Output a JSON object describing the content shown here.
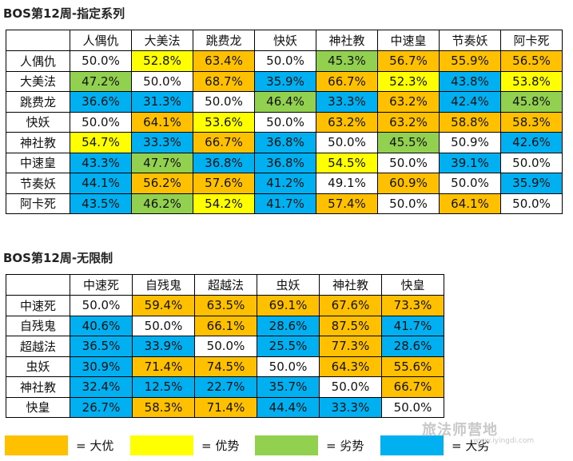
{
  "tables": [
    {
      "title": "BOS第12周-指定系列",
      "columns": [
        "人偶仇",
        "大美法",
        "跳费龙",
        "快妖",
        "神社教",
        "中速皇",
        "节奏妖",
        "阿卡死"
      ],
      "rows": [
        {
          "label": "人偶仇",
          "cells": [
            {
              "value": "50.0%",
              "level": "even"
            },
            {
              "value": "52.8%",
              "level": "adv"
            },
            {
              "value": "63.4%",
              "level": "big-adv"
            },
            {
              "value": "50.0%",
              "level": "even"
            },
            {
              "value": "45.3%",
              "level": "dis"
            },
            {
              "value": "56.7%",
              "level": "big-adv"
            },
            {
              "value": "55.9%",
              "level": "big-adv"
            },
            {
              "value": "56.5%",
              "level": "big-adv"
            }
          ]
        },
        {
          "label": "大美法",
          "cells": [
            {
              "value": "47.2%",
              "level": "dis"
            },
            {
              "value": "50.0%",
              "level": "even"
            },
            {
              "value": "68.7%",
              "level": "big-adv"
            },
            {
              "value": "35.9%",
              "level": "big-dis"
            },
            {
              "value": "66.7%",
              "level": "big-adv"
            },
            {
              "value": "52.3%",
              "level": "adv"
            },
            {
              "value": "43.8%",
              "level": "big-dis"
            },
            {
              "value": "53.8%",
              "level": "adv"
            }
          ]
        },
        {
          "label": "跳费龙",
          "cells": [
            {
              "value": "36.6%",
              "level": "big-dis"
            },
            {
              "value": "31.3%",
              "level": "big-dis"
            },
            {
              "value": "50.0%",
              "level": "even"
            },
            {
              "value": "46.4%",
              "level": "dis"
            },
            {
              "value": "33.3%",
              "level": "big-dis"
            },
            {
              "value": "63.2%",
              "level": "big-adv"
            },
            {
              "value": "42.4%",
              "level": "big-dis"
            },
            {
              "value": "45.8%",
              "level": "dis"
            }
          ]
        },
        {
          "label": "快妖",
          "cells": [
            {
              "value": "50.0%",
              "level": "even"
            },
            {
              "value": "64.1%",
              "level": "big-adv"
            },
            {
              "value": "53.6%",
              "level": "adv"
            },
            {
              "value": "50.0%",
              "level": "even"
            },
            {
              "value": "63.2%",
              "level": "big-adv"
            },
            {
              "value": "63.2%",
              "level": "big-adv"
            },
            {
              "value": "58.8%",
              "level": "big-adv"
            },
            {
              "value": "58.3%",
              "level": "big-adv"
            }
          ]
        },
        {
          "label": "神社教",
          "cells": [
            {
              "value": "54.7%",
              "level": "adv"
            },
            {
              "value": "33.3%",
              "level": "big-dis"
            },
            {
              "value": "66.7%",
              "level": "big-adv"
            },
            {
              "value": "36.8%",
              "level": "big-dis"
            },
            {
              "value": "50.0%",
              "level": "even"
            },
            {
              "value": "45.5%",
              "level": "dis"
            },
            {
              "value": "50.9%",
              "level": "even"
            },
            {
              "value": "42.6%",
              "level": "big-dis"
            }
          ]
        },
        {
          "label": "中速皇",
          "cells": [
            {
              "value": "43.3%",
              "level": "big-dis"
            },
            {
              "value": "47.7%",
              "level": "dis"
            },
            {
              "value": "36.8%",
              "level": "big-dis"
            },
            {
              "value": "36.8%",
              "level": "big-dis"
            },
            {
              "value": "54.5%",
              "level": "adv"
            },
            {
              "value": "50.0%",
              "level": "even"
            },
            {
              "value": "39.1%",
              "level": "big-dis"
            },
            {
              "value": "50.0%",
              "level": "even"
            }
          ]
        },
        {
          "label": "节奏妖",
          "cells": [
            {
              "value": "44.1%",
              "level": "big-dis"
            },
            {
              "value": "56.2%",
              "level": "big-adv"
            },
            {
              "value": "57.6%",
              "level": "big-adv"
            },
            {
              "value": "41.2%",
              "level": "big-dis"
            },
            {
              "value": "49.1%",
              "level": "even"
            },
            {
              "value": "60.9%",
              "level": "big-adv"
            },
            {
              "value": "50.0%",
              "level": "even"
            },
            {
              "value": "35.9%",
              "level": "big-dis"
            }
          ]
        },
        {
          "label": "阿卡死",
          "cells": [
            {
              "value": "43.5%",
              "level": "big-dis"
            },
            {
              "value": "46.2%",
              "level": "dis"
            },
            {
              "value": "54.2%",
              "level": "adv"
            },
            {
              "value": "41.7%",
              "level": "big-dis"
            },
            {
              "value": "57.4%",
              "level": "big-adv"
            },
            {
              "value": "50.0%",
              "level": "even"
            },
            {
              "value": "64.1%",
              "level": "big-adv"
            },
            {
              "value": "50.0%",
              "level": "even"
            }
          ]
        }
      ]
    },
    {
      "title": "BOS第12周-无限制",
      "columns": [
        "中速死",
        "自残鬼",
        "超越法",
        "虫妖",
        "神社教",
        "快皇"
      ],
      "rows": [
        {
          "label": "中速死",
          "cells": [
            {
              "value": "50.0%",
              "level": "even"
            },
            {
              "value": "59.4%",
              "level": "big-adv"
            },
            {
              "value": "63.5%",
              "level": "big-adv"
            },
            {
              "value": "69.1%",
              "level": "big-adv"
            },
            {
              "value": "67.6%",
              "level": "big-adv"
            },
            {
              "value": "73.3%",
              "level": "big-adv"
            }
          ]
        },
        {
          "label": "自残鬼",
          "cells": [
            {
              "value": "40.6%",
              "level": "big-dis"
            },
            {
              "value": "50.0%",
              "level": "even"
            },
            {
              "value": "66.1%",
              "level": "big-adv"
            },
            {
              "value": "28.6%",
              "level": "big-dis"
            },
            {
              "value": "87.5%",
              "level": "big-adv"
            },
            {
              "value": "41.7%",
              "level": "big-dis"
            }
          ]
        },
        {
          "label": "超越法",
          "cells": [
            {
              "value": "36.5%",
              "level": "big-dis"
            },
            {
              "value": "33.9%",
              "level": "big-dis"
            },
            {
              "value": "50.0%",
              "level": "even"
            },
            {
              "value": "25.5%",
              "level": "big-dis"
            },
            {
              "value": "77.3%",
              "level": "big-adv"
            },
            {
              "value": "28.6%",
              "level": "big-dis"
            }
          ]
        },
        {
          "label": "虫妖",
          "cells": [
            {
              "value": "30.9%",
              "level": "big-dis"
            },
            {
              "value": "71.4%",
              "level": "big-adv"
            },
            {
              "value": "74.5%",
              "level": "big-adv"
            },
            {
              "value": "50.0%",
              "level": "even"
            },
            {
              "value": "64.3%",
              "level": "big-adv"
            },
            {
              "value": "55.6%",
              "level": "big-adv"
            }
          ]
        },
        {
          "label": "神社教",
          "cells": [
            {
              "value": "32.4%",
              "level": "big-dis"
            },
            {
              "value": "12.5%",
              "level": "big-dis"
            },
            {
              "value": "22.7%",
              "level": "big-dis"
            },
            {
              "value": "35.7%",
              "level": "big-dis"
            },
            {
              "value": "50.0%",
              "level": "even"
            },
            {
              "value": "66.7%",
              "level": "big-adv"
            }
          ]
        },
        {
          "label": "快皇",
          "cells": [
            {
              "value": "26.7%",
              "level": "big-dis"
            },
            {
              "value": "58.3%",
              "level": "big-adv"
            },
            {
              "value": "71.4%",
              "level": "big-adv"
            },
            {
              "value": "44.4%",
              "level": "big-dis"
            },
            {
              "value": "33.3%",
              "level": "big-dis"
            },
            {
              "value": "50.0%",
              "level": "even"
            }
          ]
        }
      ]
    }
  ],
  "legend": [
    {
      "level": "big-adv",
      "label": "= 大优",
      "color": "#ffc000"
    },
    {
      "level": "adv",
      "label": "= 优势",
      "color": "#ffff00"
    },
    {
      "level": "dis",
      "label": "= 劣势",
      "color": "#92d050"
    },
    {
      "level": "big-dis",
      "label": "= 大劣",
      "color": "#00b0f0"
    }
  ],
  "colors": {
    "big-adv": "#ffc000",
    "adv": "#ffff00",
    "dis": "#92d050",
    "big-dis": "#00b0f0",
    "even": "#ffffff"
  },
  "watermark": {
    "text": "旅法师营地",
    "url": "www.iyingdi.com"
  }
}
